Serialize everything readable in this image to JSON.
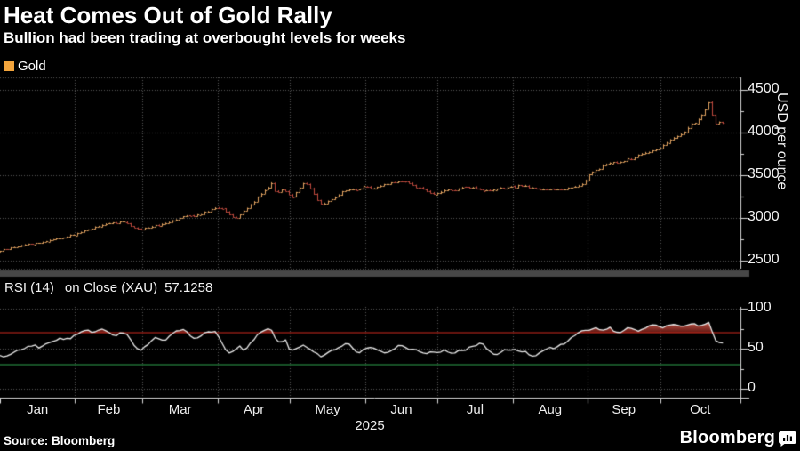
{
  "header": {
    "title": "Heat Comes Out of Gold Rally",
    "subtitle": "Bullion had been trading at overbought levels for weeks"
  },
  "legend_gold": {
    "label": "Gold",
    "swatch_color": "#f2a43c"
  },
  "legend_rsi": {
    "name": "RSI (14)",
    "detail": "on Close (XAU)",
    "value": "57.1258",
    "swatch_color": "#ffffff"
  },
  "footer": {
    "source": "Source: Bloomberg",
    "brand": "Bloomberg"
  },
  "axes": {
    "price": {
      "label": "USD per ounce",
      "ticks": [
        4500,
        4000,
        3500,
        3000,
        2500
      ],
      "minor_step": 250
    },
    "rsi": {
      "ticks": [
        100,
        50,
        0
      ],
      "minor_ticks": [
        75,
        25
      ]
    },
    "x": {
      "month_labels": [
        "Jan",
        "Feb",
        "Mar",
        "Apr",
        "May",
        "Jun",
        "Jul",
        "Aug",
        "Sep",
        "Oct"
      ],
      "year_label": "2025"
    }
  },
  "colors": {
    "background": "#000000",
    "up_bar": "#e2a360",
    "down_bar": "#c04a3e",
    "grid": "#585858",
    "axis": "#d8d8d8",
    "divider": "#474747",
    "rsi_line": "#ebebeb",
    "overbought_line": "#d42b1e",
    "oversold_line": "#2ea44f",
    "overbought_fill_top": "rgba(224,108,92,0.95)",
    "overbought_fill_bottom": "rgba(112,26,20,0.85)"
  },
  "chart_data": [
    {
      "type": "ohlc",
      "name": "Gold",
      "title": "Heat Comes Out of Gold Rally",
      "xlabel": "2025 (Jan - Oct)",
      "ylabel": "USD per ounce",
      "ylim": [
        2350,
        4650
      ],
      "yticks": [
        2500,
        3000,
        3500,
        4000,
        4500
      ],
      "x_unit": "day_of_year_2025",
      "legend_position": "top-left",
      "grid": "dotted",
      "anchors_close": [
        [
          0,
          2615
        ],
        [
          6,
          2660
        ],
        [
          10,
          2690
        ],
        [
          14,
          2700
        ],
        [
          18,
          2720
        ],
        [
          22,
          2755
        ],
        [
          26,
          2770
        ],
        [
          29,
          2790
        ],
        [
          33,
          2830
        ],
        [
          38,
          2880
        ],
        [
          43,
          2920
        ],
        [
          47,
          2945
        ],
        [
          51,
          2950
        ],
        [
          54,
          2905
        ],
        [
          58,
          2865
        ],
        [
          62,
          2900
        ],
        [
          66,
          2920
        ],
        [
          70,
          2960
        ],
        [
          74,
          3000
        ],
        [
          77,
          3035
        ],
        [
          80,
          3015
        ],
        [
          84,
          3060
        ],
        [
          87,
          3090
        ],
        [
          89,
          3120
        ],
        [
          92,
          3115
        ],
        [
          95,
          3030
        ],
        [
          97,
          2985
        ],
        [
          100,
          3060
        ],
        [
          103,
          3140
        ],
        [
          106,
          3230
        ],
        [
          109,
          3320
        ],
        [
          111,
          3370
        ],
        [
          112,
          3435
        ],
        [
          113,
          3340
        ],
        [
          115,
          3300
        ],
        [
          117,
          3340
        ],
        [
          119,
          3290
        ],
        [
          121,
          3250
        ],
        [
          123,
          3320
        ],
        [
          126,
          3420
        ],
        [
          128,
          3360
        ],
        [
          130,
          3260
        ],
        [
          133,
          3150
        ],
        [
          136,
          3200
        ],
        [
          139,
          3260
        ],
        [
          142,
          3310
        ],
        [
          145,
          3340
        ],
        [
          148,
          3330
        ],
        [
          151,
          3380
        ],
        [
          154,
          3340
        ],
        [
          158,
          3380
        ],
        [
          161,
          3400
        ],
        [
          164,
          3420
        ],
        [
          167,
          3440
        ],
        [
          170,
          3390
        ],
        [
          173,
          3350
        ],
        [
          176,
          3330
        ],
        [
          179,
          3270
        ],
        [
          182,
          3300
        ],
        [
          185,
          3340
        ],
        [
          188,
          3320
        ],
        [
          191,
          3350
        ],
        [
          194,
          3360
        ],
        [
          197,
          3350
        ],
        [
          200,
          3320
        ],
        [
          203,
          3310
        ],
        [
          206,
          3340
        ],
        [
          209,
          3350
        ],
        [
          212,
          3360
        ],
        [
          215,
          3380
        ],
        [
          218,
          3370
        ],
        [
          221,
          3340
        ],
        [
          224,
          3335
        ],
        [
          227,
          3340
        ],
        [
          230,
          3335
        ],
        [
          233,
          3340
        ],
        [
          236,
          3355
        ],
        [
          239,
          3375
        ],
        [
          241,
          3410
        ],
        [
          243,
          3480
        ],
        [
          245,
          3540
        ],
        [
          247,
          3560
        ],
        [
          249,
          3600
        ],
        [
          251,
          3640
        ],
        [
          253,
          3650
        ],
        [
          255,
          3640
        ],
        [
          257,
          3660
        ],
        [
          259,
          3680
        ],
        [
          261,
          3690
        ],
        [
          263,
          3720
        ],
        [
          265,
          3750
        ],
        [
          267,
          3760
        ],
        [
          269,
          3780
        ],
        [
          271,
          3790
        ],
        [
          273,
          3830
        ],
        [
          274,
          3860
        ],
        [
          276,
          3880
        ],
        [
          278,
          3930
        ],
        [
          280,
          3960
        ],
        [
          282,
          3990
        ],
        [
          284,
          4040
        ],
        [
          286,
          4100
        ],
        [
          288,
          4130
        ],
        [
          290,
          4200
        ],
        [
          292,
          4290
        ],
        [
          293,
          4350
        ],
        [
          294,
          4360
        ],
        [
          295,
          4130
        ],
        [
          296,
          4110
        ],
        [
          297,
          4140
        ],
        [
          298,
          4090
        ],
        [
          299,
          4110
        ]
      ]
    },
    {
      "type": "line",
      "name": "RSI (14) on Close (XAU)",
      "last_value": 57.1258,
      "ylim": [
        0,
        105
      ],
      "yticks": [
        0,
        50,
        100
      ],
      "overbought": 70,
      "oversold": 30,
      "grid": "dotted",
      "anchors": [
        [
          0,
          42
        ],
        [
          2,
          38
        ],
        [
          5,
          44
        ],
        [
          8,
          48
        ],
        [
          11,
          52
        ],
        [
          14,
          55
        ],
        [
          16,
          51
        ],
        [
          19,
          56
        ],
        [
          22,
          60
        ],
        [
          25,
          63
        ],
        [
          28,
          62
        ],
        [
          31,
          66
        ],
        [
          34,
          71
        ],
        [
          36,
          73
        ],
        [
          38,
          70
        ],
        [
          40,
          72
        ],
        [
          42,
          74
        ],
        [
          44,
          72
        ],
        [
          46,
          67
        ],
        [
          48,
          65
        ],
        [
          50,
          70
        ],
        [
          52,
          71
        ],
        [
          54,
          62
        ],
        [
          56,
          52
        ],
        [
          58,
          48
        ],
        [
          61,
          55
        ],
        [
          63,
          62
        ],
        [
          65,
          64
        ],
        [
          67,
          60
        ],
        [
          69,
          62
        ],
        [
          71,
          67
        ],
        [
          73,
          72
        ],
        [
          75,
          74
        ],
        [
          77,
          73
        ],
        [
          79,
          66
        ],
        [
          81,
          62
        ],
        [
          83,
          66
        ],
        [
          85,
          71
        ],
        [
          87,
          72
        ],
        [
          89,
          71
        ],
        [
          91,
          62
        ],
        [
          93,
          50
        ],
        [
          95,
          45
        ],
        [
          97,
          49
        ],
        [
          99,
          53
        ],
        [
          101,
          48
        ],
        [
          103,
          55
        ],
        [
          105,
          62
        ],
        [
          107,
          69
        ],
        [
          109,
          72
        ],
        [
          111,
          74
        ],
        [
          112,
          75
        ],
        [
          114,
          62
        ],
        [
          116,
          56
        ],
        [
          118,
          61
        ],
        [
          120,
          46
        ],
        [
          122,
          49
        ],
        [
          124,
          52
        ],
        [
          126,
          54
        ],
        [
          128,
          49
        ],
        [
          130,
          46
        ],
        [
          133,
          40
        ],
        [
          135,
          45
        ],
        [
          137,
          48
        ],
        [
          139,
          50
        ],
        [
          141,
          53
        ],
        [
          144,
          58
        ],
        [
          146,
          50
        ],
        [
          148,
          43
        ],
        [
          150,
          48
        ],
        [
          152,
          51
        ],
        [
          154,
          53
        ],
        [
          156,
          49
        ],
        [
          158,
          45
        ],
        [
          160,
          44
        ],
        [
          162,
          48
        ],
        [
          164,
          52
        ],
        [
          166,
          55
        ],
        [
          168,
          51
        ],
        [
          170,
          49
        ],
        [
          172,
          50
        ],
        [
          174,
          45
        ],
        [
          176,
          43
        ],
        [
          178,
          47
        ],
        [
          180,
          44
        ],
        [
          182,
          46
        ],
        [
          184,
          48
        ],
        [
          186,
          43
        ],
        [
          188,
          45
        ],
        [
          190,
          47
        ],
        [
          192,
          48
        ],
        [
          194,
          51
        ],
        [
          196,
          53
        ],
        [
          198,
          57
        ],
        [
          199,
          58
        ],
        [
          201,
          50
        ],
        [
          203,
          45
        ],
        [
          205,
          41
        ],
        [
          207,
          46
        ],
        [
          209,
          48
        ],
        [
          211,
          49
        ],
        [
          213,
          50
        ],
        [
          215,
          46
        ],
        [
          217,
          47
        ],
        [
          219,
          43
        ],
        [
          221,
          41
        ],
        [
          223,
          44
        ],
        [
          225,
          48
        ],
        [
          227,
          52
        ],
        [
          229,
          50
        ],
        [
          231,
          53
        ],
        [
          233,
          56
        ],
        [
          235,
          60
        ],
        [
          237,
          65
        ],
        [
          239,
          69
        ],
        [
          240,
          71
        ],
        [
          242,
          73
        ],
        [
          244,
          74
        ],
        [
          246,
          76
        ],
        [
          248,
          74
        ],
        [
          250,
          73
        ],
        [
          252,
          77
        ],
        [
          254,
          72
        ],
        [
          256,
          70
        ],
        [
          258,
          73
        ],
        [
          260,
          76
        ],
        [
          262,
          74
        ],
        [
          264,
          71
        ],
        [
          266,
          74
        ],
        [
          268,
          77
        ],
        [
          270,
          80
        ],
        [
          272,
          78
        ],
        [
          274,
          75
        ],
        [
          276,
          79
        ],
        [
          278,
          81
        ],
        [
          280,
          79
        ],
        [
          282,
          77
        ],
        [
          284,
          80
        ],
        [
          286,
          82
        ],
        [
          288,
          80
        ],
        [
          290,
          78
        ],
        [
          292,
          81
        ],
        [
          293,
          83
        ],
        [
          294,
          79
        ],
        [
          295,
          66
        ],
        [
          296,
          60
        ],
        [
          297,
          58
        ],
        [
          298,
          57.5
        ],
        [
          299,
          57.1258
        ]
      ]
    }
  ]
}
